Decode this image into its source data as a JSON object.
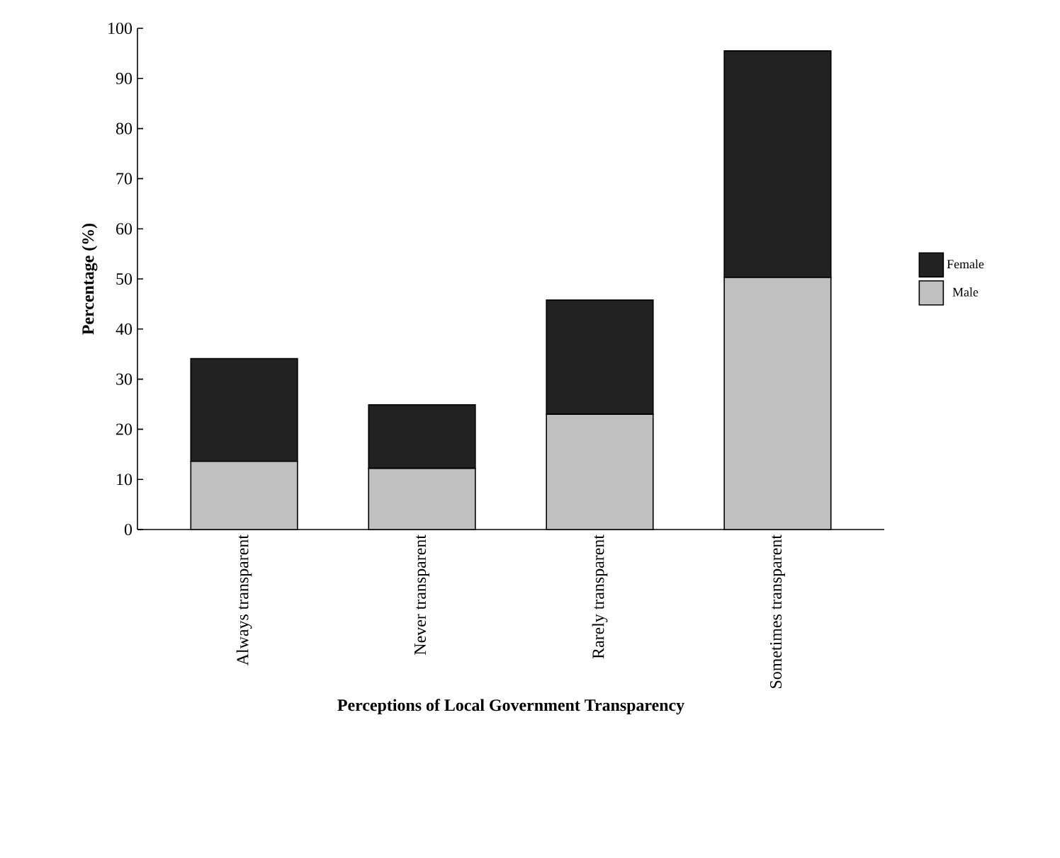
{
  "chart_data": {
    "type": "bar",
    "stacked": true,
    "xlabel": "Perceptions of Local Government Transparency",
    "ylabel": "Percentage (%)",
    "categories": [
      "Always transparent",
      "Never transparent",
      "Rarely transparent",
      "Sometimes transparent"
    ],
    "series": [
      {
        "name": "Male",
        "color": "#c0c0c0",
        "values": [
          13.6,
          12.2,
          23.0,
          50.3
        ]
      },
      {
        "name": "Female",
        "color": "#222222",
        "values": [
          20.5,
          12.7,
          22.8,
          45.2
        ]
      }
    ],
    "ylim": [
      0,
      100
    ],
    "yticks": [
      0,
      10,
      20,
      30,
      40,
      50,
      60,
      70,
      80,
      90,
      100
    ],
    "legend": "right"
  }
}
